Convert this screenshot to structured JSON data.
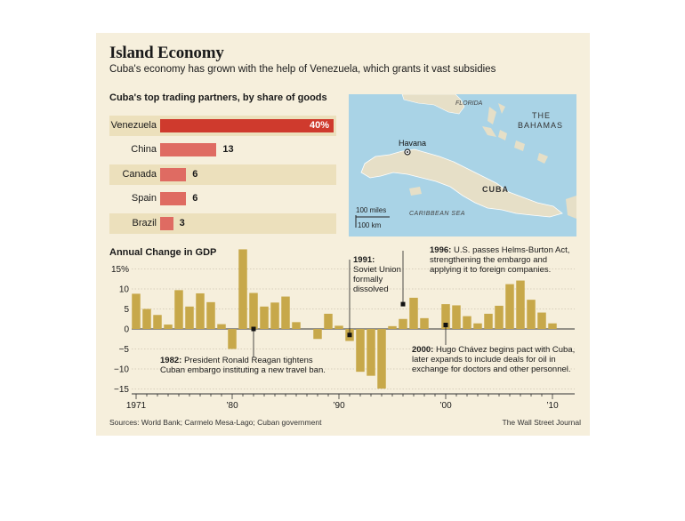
{
  "title": "Island Economy",
  "subtitle": "Cuba's economy has grown with the help of Venezuela, which grants it vast subsidies",
  "colors": {
    "panel": "#f6efdc",
    "band": "#ece0bc",
    "lead_bar": "#cf3a2d",
    "other_bar": "#df6b62",
    "gdp_bar": "#c7a84a",
    "water": "#a9d3e6",
    "land": "#e6dfc7"
  },
  "trading": {
    "title": "Cuba's top trading partners, by share of goods",
    "partners": [
      {
        "name": "Venezuela",
        "value": 40,
        "label": "40%"
      },
      {
        "name": "China",
        "value": 13,
        "label": "13"
      },
      {
        "name": "Canada",
        "value": 6,
        "label": "6"
      },
      {
        "name": "Spain",
        "value": 6,
        "label": "6"
      },
      {
        "name": "Brazil",
        "value": 3,
        "label": "3"
      }
    ]
  },
  "map": {
    "labels": {
      "florida": "FLORIDA",
      "bahamas_1": "THE",
      "bahamas_2": "BAHAMAS",
      "havana": "Havana",
      "cuba": "CUBA",
      "sea": "CARIBBEAN SEA"
    },
    "scale_miles": "100 miles",
    "scale_km": "100 km"
  },
  "chart_data": {
    "type": "bar",
    "title": "Annual Change in GDP",
    "unit": "%",
    "x": [
      1971,
      1972,
      1973,
      1974,
      1975,
      1976,
      1977,
      1978,
      1979,
      1980,
      1981,
      1982,
      1983,
      1984,
      1985,
      1986,
      1987,
      1988,
      1989,
      1990,
      1991,
      1992,
      1993,
      1994,
      1995,
      1996,
      1997,
      1998,
      1999,
      2000,
      2001,
      2002,
      2003,
      2004,
      2005,
      2006,
      2007,
      2008,
      2009,
      2010
    ],
    "values": [
      8.8,
      5.0,
      3.5,
      1.1,
      9.7,
      5.6,
      8.9,
      6.7,
      1.2,
      -5.0,
      19.9,
      9.0,
      5.6,
      6.6,
      8.1,
      1.7,
      0.0,
      -2.5,
      3.8,
      0.8,
      -3.0,
      -10.7,
      -11.7,
      -14.9,
      0.7,
      2.5,
      7.8,
      2.7,
      0.0,
      6.2,
      5.9,
      3.2,
      1.4,
      3.8,
      5.8,
      11.2,
      12.1,
      7.3,
      4.1,
      1.4
    ],
    "yticks": [
      15,
      10,
      5,
      0,
      -5,
      -10,
      -15
    ],
    "ytick_labels": [
      "15%",
      "10",
      "5",
      "0",
      "−5",
      "−10",
      "−15"
    ],
    "xticks": [
      1971,
      1980,
      1990,
      2000,
      2010
    ],
    "xtick_labels": [
      "1971",
      "’80",
      "’90",
      "’00",
      "’10"
    ],
    "ylim": [
      -15,
      20
    ],
    "annotations": [
      {
        "year_bold": "1982:",
        "text_1": " President Ronald Reagan tightens",
        "text_2": "Cuban embargo instituting a new travel ban."
      },
      {
        "year_bold": "1991:",
        "text_1": "Soviet Union",
        "text_2": "formally",
        "text_3": "dissolved"
      },
      {
        "year_bold": "1996:",
        "text_1": " U.S. passes Helms-Burton Act,",
        "text_2": "strengthening the embargo and",
        "text_3": "applying it to foreign companies."
      },
      {
        "year_bold": "2000:",
        "text_1": " Hugo Chávez begins pact with Cuba,",
        "text_2": "later expands to include deals for oil in",
        "text_3": "exchange for doctors and other personnel."
      }
    ]
  },
  "footer": {
    "sources": "Sources: World Bank; Carmelo Mesa-Lago; Cuban government",
    "credit": "The Wall Street Journal"
  }
}
